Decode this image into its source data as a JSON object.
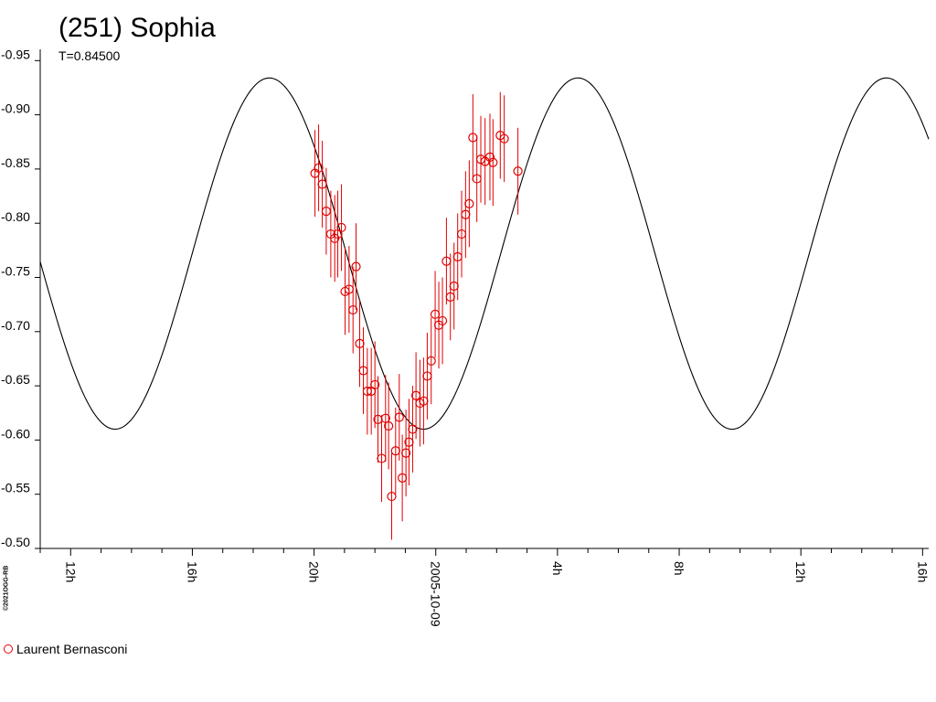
{
  "title": "(251) Sophia",
  "subtitle": "T=0.84500",
  "copyright": "©2021OGG-RB",
  "legend": {
    "label": "Laurent Bernasconi",
    "color": "#e00000"
  },
  "colors": {
    "model_curve": "#000000",
    "observations": "#e00000",
    "axis": "#000000"
  },
  "chart_data": {
    "type": "scatter",
    "title": "(251) Sophia",
    "subtitle": "T=0.84500",
    "xlabel": "",
    "ylabel": "",
    "x_units": "hours relative to 2005-10-09 00:00",
    "xlim": [
      -13.0,
      16.2
    ],
    "ylim": [
      -0.957,
      -0.5
    ],
    "y_inverted": true,
    "x_ticks": [
      {
        "x": -12,
        "label": "12h"
      },
      {
        "x": -8,
        "label": "16h"
      },
      {
        "x": -4,
        "label": "20h"
      },
      {
        "x": 0,
        "label": "2005-10-09"
      },
      {
        "x": 4,
        "label": "4h"
      },
      {
        "x": 8,
        "label": "8h"
      },
      {
        "x": 12,
        "label": "12h"
      },
      {
        "x": 16,
        "label": "16h"
      }
    ],
    "y_ticks": [
      {
        "y": -0.95,
        "label": "-0.95"
      },
      {
        "y": -0.9,
        "label": "-0.90"
      },
      {
        "y": -0.85,
        "label": "-0.85"
      },
      {
        "y": -0.8,
        "label": "-0.80"
      },
      {
        "y": -0.75,
        "label": "-0.75"
      },
      {
        "y": -0.7,
        "label": "-0.70"
      },
      {
        "y": -0.65,
        "label": "-0.65"
      },
      {
        "y": -0.6,
        "label": "-0.60"
      },
      {
        "y": -0.55,
        "label": "-0.55"
      },
      {
        "y": -0.5,
        "label": "-0.50"
      }
    ],
    "model_curve": {
      "description": "sinusoidal model lightcurve",
      "amplitude": 0.162,
      "mean": -0.772,
      "period_h": 10.14,
      "min_at_h": -0.4
    },
    "series": [
      {
        "name": "Laurent Bernasconi",
        "error": 0.04,
        "points": [
          [
            -3.97,
            -0.846
          ],
          [
            -3.85,
            -0.851
          ],
          [
            -3.73,
            -0.836
          ],
          [
            -3.6,
            -0.811
          ],
          [
            -3.45,
            -0.79
          ],
          [
            -3.32,
            -0.786
          ],
          [
            -3.22,
            -0.79
          ],
          [
            -3.1,
            -0.796
          ],
          [
            -2.98,
            -0.737
          ],
          [
            -2.85,
            -0.739
          ],
          [
            -2.72,
            -0.72
          ],
          [
            -2.62,
            -0.76
          ],
          [
            -2.5,
            -0.689
          ],
          [
            -2.38,
            -0.664
          ],
          [
            -2.25,
            -0.645
          ],
          [
            -2.12,
            -0.645
          ],
          [
            -2.0,
            -0.651
          ],
          [
            -1.9,
            -0.619
          ],
          [
            -1.78,
            -0.583
          ],
          [
            -1.65,
            -0.62
          ],
          [
            -1.55,
            -0.613
          ],
          [
            -1.45,
            -0.548
          ],
          [
            -1.32,
            -0.59
          ],
          [
            -1.2,
            -0.621
          ],
          [
            -1.1,
            -0.565
          ],
          [
            -0.98,
            -0.588
          ],
          [
            -0.88,
            -0.598
          ],
          [
            -0.76,
            -0.61
          ],
          [
            -0.65,
            -0.641
          ],
          [
            -0.52,
            -0.634
          ],
          [
            -0.4,
            -0.636
          ],
          [
            -0.28,
            -0.659
          ],
          [
            -0.15,
            -0.673
          ],
          [
            -0.02,
            -0.716
          ],
          [
            0.1,
            -0.706
          ],
          [
            0.22,
            -0.71
          ],
          [
            0.35,
            -0.765
          ],
          [
            0.48,
            -0.732
          ],
          [
            0.6,
            -0.742
          ],
          [
            0.72,
            -0.769
          ],
          [
            0.85,
            -0.79
          ],
          [
            0.98,
            -0.808
          ],
          [
            1.1,
            -0.818
          ],
          [
            1.22,
            -0.879
          ],
          [
            1.35,
            -0.841
          ],
          [
            1.48,
            -0.859
          ],
          [
            1.62,
            -0.857
          ],
          [
            1.78,
            -0.861
          ],
          [
            1.88,
            -0.856
          ],
          [
            2.12,
            -0.881
          ],
          [
            2.25,
            -0.878
          ],
          [
            2.7,
            -0.848
          ]
        ]
      }
    ]
  }
}
